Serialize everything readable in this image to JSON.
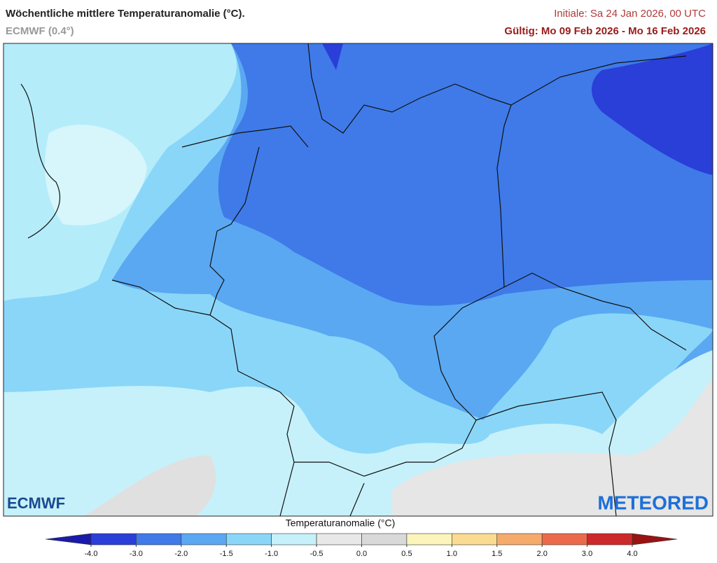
{
  "header": {
    "title": "Wöchentliche mittlere Temperaturanomalie (°C).",
    "subtitle": "ECMWF (0.4°)",
    "initial": "Initiale: Sa 24 Jan 2026, 00 UTC",
    "valid": "Gültig: Mo 09 Feb 2026 - Mo 16 Feb 2026"
  },
  "map": {
    "logo_left": "ECMWF",
    "logo_right": "METEORED"
  },
  "colorbar": {
    "title": "Temperaturanomalie (°C)",
    "ticks": [
      {
        "value": -4,
        "label": "-4.0"
      },
      {
        "value": -3,
        "label": "-3.0"
      },
      {
        "value": -2,
        "label": "-2.0"
      },
      -1.5,
      {
        "value": -1,
        "label": "-1.0"
      },
      -0.5,
      {
        "value": 0,
        "label": "0.0"
      },
      0.5,
      {
        "value": 1,
        "label": "1.0"
      },
      1.5,
      {
        "value": 2,
        "label": "2.0"
      },
      {
        "value": 3,
        "label": "3.0"
      },
      {
        "value": 4,
        "label": "4.0"
      }
    ],
    "colors": [
      "#2a3ed8",
      "#3f7ae8",
      "#5aa8f2",
      "#8ad6f8",
      "#c6f1fa",
      "#e8e8e8",
      "#d9d9d9",
      "#fbf4bb",
      "#f9dc92",
      "#f5ab6c",
      "#ec6a4c",
      "#cc2a2a"
    ],
    "under_color": "#1a1aa8",
    "over_color": "#9a1212"
  }
}
